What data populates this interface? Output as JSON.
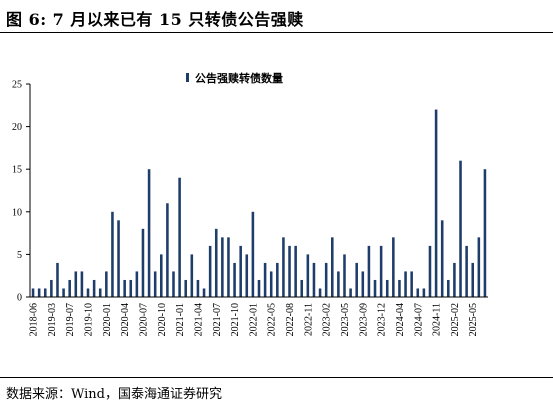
{
  "figure": {
    "title": "图 6:  7 月以来已有 15 只转债公告强赎",
    "source": "数据来源：Wind，国泰海通证券研究"
  },
  "chart_data": {
    "type": "bar",
    "legend": {
      "label": "公告强赎转债数量",
      "position": "top-center"
    },
    "bar_color": "#1f3d6b",
    "y_ticks": [
      0,
      5,
      10,
      15,
      20,
      25
    ],
    "ylim": [
      0,
      25
    ],
    "x_tick_labels": [
      "2018-06",
      "2019-03",
      "2019-07",
      "2019-10",
      "2020-01",
      "2020-04",
      "2020-07",
      "2020-10",
      "2021-01",
      "2021-04",
      "2021-07",
      "2021-10",
      "2022-01",
      "2022-05",
      "2022-08",
      "2022-11",
      "2023-02",
      "2023-05",
      "2023-09",
      "2023-12",
      "2024-04",
      "2024-07",
      "2024-11",
      "2025-02",
      "2025-05"
    ],
    "x_tick_positions": [
      0,
      3,
      6,
      9,
      12,
      15,
      18,
      21,
      24,
      27,
      30,
      33,
      36,
      39,
      42,
      45,
      48,
      51,
      54,
      57,
      60,
      63,
      66,
      69,
      72
    ],
    "values": [
      1,
      1,
      1,
      2,
      4,
      1,
      2,
      3,
      3,
      1,
      2,
      1,
      3,
      10,
      9,
      2,
      2,
      3,
      8,
      15,
      3,
      5,
      11,
      3,
      14,
      2,
      5,
      2,
      1,
      6,
      8,
      7,
      7,
      4,
      6,
      5,
      10,
      2,
      4,
      3,
      4,
      7,
      6,
      6,
      2,
      5,
      4,
      1,
      4,
      7,
      3,
      5,
      1,
      4,
      3,
      6,
      2,
      6,
      2,
      7,
      2,
      3,
      3,
      1,
      1,
      6,
      22,
      9,
      2,
      4,
      16,
      6,
      4,
      7,
      15
    ]
  }
}
